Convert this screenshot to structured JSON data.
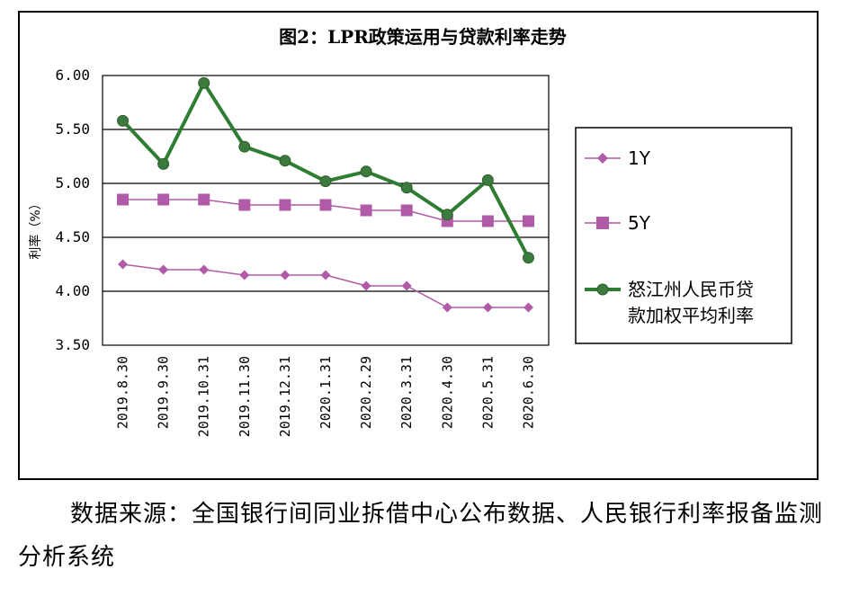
{
  "chart_data": {
    "type": "line",
    "title": "图2：LPR政策运用与贷款利率走势",
    "ylabel": "利率（%）",
    "xlabel": "",
    "ylim": [
      3.5,
      6.0
    ],
    "yticks": [
      "6.00",
      "5.50",
      "5.00",
      "4.50",
      "4.00",
      "3.50"
    ],
    "ytick_values": [
      6.0,
      5.5,
      5.0,
      4.5,
      4.0,
      3.5
    ],
    "grid": "horizontal",
    "legend_position": "right",
    "categories": [
      "2019.8.30",
      "2019.9.30",
      "2019.10.31",
      "2019.11.30",
      "2019.12.31",
      "2020.1.31",
      "2020.2.29",
      "2020.3.31",
      "2020.4.30",
      "2020.5.31",
      "2020.6.30"
    ],
    "series": [
      {
        "name": "1Y",
        "color": "#b05aa8",
        "marker": "diamond",
        "values": [
          4.25,
          4.2,
          4.2,
          4.15,
          4.15,
          4.15,
          4.05,
          4.05,
          3.85,
          3.85,
          3.85
        ]
      },
      {
        "name": "5Y",
        "color": "#b05aa8",
        "marker": "square",
        "values": [
          4.85,
          4.85,
          4.85,
          4.8,
          4.8,
          4.8,
          4.75,
          4.75,
          4.65,
          4.65,
          4.65
        ]
      },
      {
        "name": "怒江州人民币贷款加权平均利率",
        "color": "#2e7d32",
        "marker": "circle",
        "values": [
          5.58,
          5.18,
          5.93,
          5.34,
          5.21,
          5.02,
          5.11,
          4.96,
          4.71,
          5.03,
          4.31
        ]
      }
    ]
  },
  "legend": {
    "series_1": "1Y",
    "series_2": "5Y",
    "series_3_line1": "怒江州人民币贷",
    "series_3_line2": "款加权平均利率"
  },
  "caption": "数据来源：全国银行间同业拆借中心公布数据、人民银行利率报备监测分析系统"
}
